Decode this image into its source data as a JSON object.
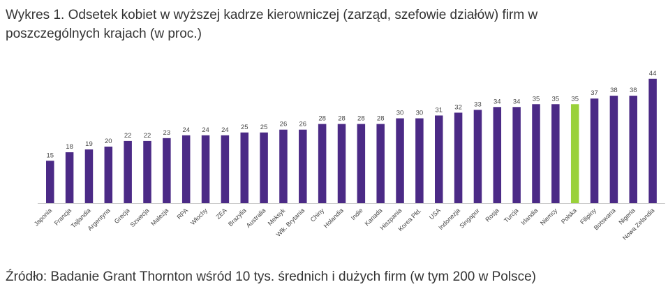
{
  "title": "Wykres 1. Odsetek kobiet w wyższej kadrze kierowniczej (zarząd, szefowie działów) firm w poszczególnych krajach (w proc.)",
  "source": "Źródło: Badanie Grant Thornton wśród 10 tys. średnich i dużych firm (w tym 200 w Polsce)",
  "colors": {
    "bar": "#4b2a86",
    "highlight": "#9ad13a",
    "axis": "#cccccc"
  },
  "chart_data": {
    "type": "bar",
    "title": "Wykres 1. Odsetek kobiet w wyższej kadrze kierowniczej (zarząd, szefowie działów) firm w poszczególnych krajach (w proc.)",
    "xlabel": "",
    "ylabel": "",
    "ylim": [
      0,
      44
    ],
    "grid": false,
    "highlight": "Polska",
    "categories": [
      "Japonia",
      "Francja",
      "Tajlandia",
      "Argentyna",
      "Grecja",
      "Szwecja",
      "Malezja",
      "RPA",
      "Włochy",
      "ZEA",
      "Brazylia",
      "Australia",
      "Meksyk",
      "Wlk. Brytania",
      "Chiny",
      "Holandia",
      "Indie",
      "Kanada",
      "Hiszpania",
      "Korea Płd.",
      "USA",
      "Indonezja",
      "Singapur",
      "Rosja",
      "Turcja",
      "Irlandia",
      "Niemcy",
      "Polska",
      "Filipiny",
      "Botswana",
      "Nigeria",
      "Nowa Zelandia"
    ],
    "values": [
      15,
      18,
      19,
      20,
      22,
      22,
      23,
      24,
      24,
      24,
      25,
      25,
      26,
      26,
      28,
      28,
      28,
      28,
      30,
      30,
      31,
      32,
      33,
      34,
      34,
      35,
      35,
      35,
      37,
      38,
      38,
      44
    ]
  }
}
